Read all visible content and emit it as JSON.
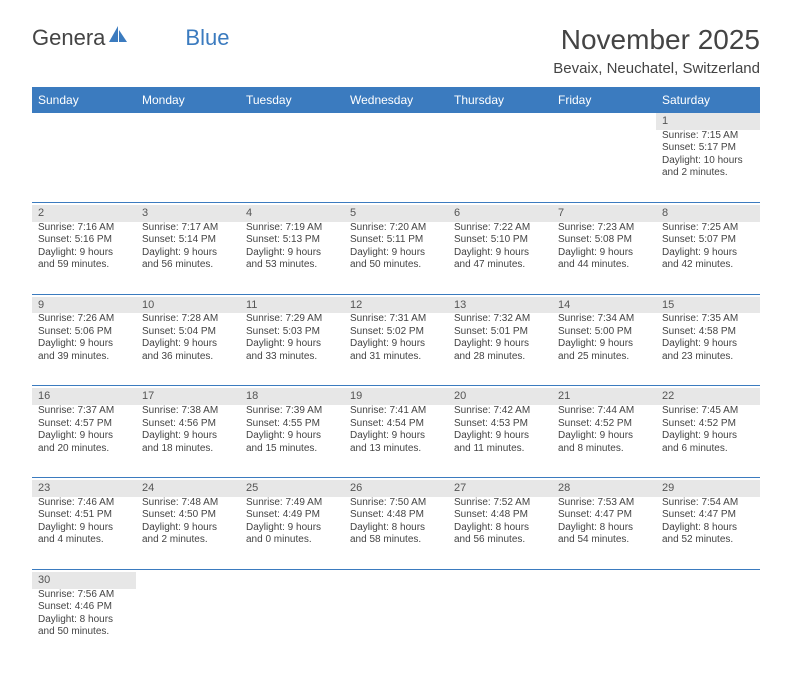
{
  "logo": {
    "text_general": "Genera",
    "text_blue": "Blue",
    "triangle_color": "#3b7bbf"
  },
  "title": "November 2025",
  "location": "Bevaix, Neuchatel, Switzerland",
  "colors": {
    "header_bg": "#3b7bbf",
    "header_text": "#ffffff",
    "daynum_bg": "#e7e7e7",
    "sep_color": "#3b7bbf",
    "text": "#444444"
  },
  "day_headers": [
    "Sunday",
    "Monday",
    "Tuesday",
    "Wednesday",
    "Thursday",
    "Friday",
    "Saturday"
  ],
  "weeks": [
    [
      null,
      null,
      null,
      null,
      null,
      null,
      {
        "n": "1",
        "sunrise": "Sunrise: 7:15 AM",
        "sunset": "Sunset: 5:17 PM",
        "daylight1": "Daylight: 10 hours",
        "daylight2": "and 2 minutes."
      }
    ],
    [
      {
        "n": "2",
        "sunrise": "Sunrise: 7:16 AM",
        "sunset": "Sunset: 5:16 PM",
        "daylight1": "Daylight: 9 hours",
        "daylight2": "and 59 minutes."
      },
      {
        "n": "3",
        "sunrise": "Sunrise: 7:17 AM",
        "sunset": "Sunset: 5:14 PM",
        "daylight1": "Daylight: 9 hours",
        "daylight2": "and 56 minutes."
      },
      {
        "n": "4",
        "sunrise": "Sunrise: 7:19 AM",
        "sunset": "Sunset: 5:13 PM",
        "daylight1": "Daylight: 9 hours",
        "daylight2": "and 53 minutes."
      },
      {
        "n": "5",
        "sunrise": "Sunrise: 7:20 AM",
        "sunset": "Sunset: 5:11 PM",
        "daylight1": "Daylight: 9 hours",
        "daylight2": "and 50 minutes."
      },
      {
        "n": "6",
        "sunrise": "Sunrise: 7:22 AM",
        "sunset": "Sunset: 5:10 PM",
        "daylight1": "Daylight: 9 hours",
        "daylight2": "and 47 minutes."
      },
      {
        "n": "7",
        "sunrise": "Sunrise: 7:23 AM",
        "sunset": "Sunset: 5:08 PM",
        "daylight1": "Daylight: 9 hours",
        "daylight2": "and 44 minutes."
      },
      {
        "n": "8",
        "sunrise": "Sunrise: 7:25 AM",
        "sunset": "Sunset: 5:07 PM",
        "daylight1": "Daylight: 9 hours",
        "daylight2": "and 42 minutes."
      }
    ],
    [
      {
        "n": "9",
        "sunrise": "Sunrise: 7:26 AM",
        "sunset": "Sunset: 5:06 PM",
        "daylight1": "Daylight: 9 hours",
        "daylight2": "and 39 minutes."
      },
      {
        "n": "10",
        "sunrise": "Sunrise: 7:28 AM",
        "sunset": "Sunset: 5:04 PM",
        "daylight1": "Daylight: 9 hours",
        "daylight2": "and 36 minutes."
      },
      {
        "n": "11",
        "sunrise": "Sunrise: 7:29 AM",
        "sunset": "Sunset: 5:03 PM",
        "daylight1": "Daylight: 9 hours",
        "daylight2": "and 33 minutes."
      },
      {
        "n": "12",
        "sunrise": "Sunrise: 7:31 AM",
        "sunset": "Sunset: 5:02 PM",
        "daylight1": "Daylight: 9 hours",
        "daylight2": "and 31 minutes."
      },
      {
        "n": "13",
        "sunrise": "Sunrise: 7:32 AM",
        "sunset": "Sunset: 5:01 PM",
        "daylight1": "Daylight: 9 hours",
        "daylight2": "and 28 minutes."
      },
      {
        "n": "14",
        "sunrise": "Sunrise: 7:34 AM",
        "sunset": "Sunset: 5:00 PM",
        "daylight1": "Daylight: 9 hours",
        "daylight2": "and 25 minutes."
      },
      {
        "n": "15",
        "sunrise": "Sunrise: 7:35 AM",
        "sunset": "Sunset: 4:58 PM",
        "daylight1": "Daylight: 9 hours",
        "daylight2": "and 23 minutes."
      }
    ],
    [
      {
        "n": "16",
        "sunrise": "Sunrise: 7:37 AM",
        "sunset": "Sunset: 4:57 PM",
        "daylight1": "Daylight: 9 hours",
        "daylight2": "and 20 minutes."
      },
      {
        "n": "17",
        "sunrise": "Sunrise: 7:38 AM",
        "sunset": "Sunset: 4:56 PM",
        "daylight1": "Daylight: 9 hours",
        "daylight2": "and 18 minutes."
      },
      {
        "n": "18",
        "sunrise": "Sunrise: 7:39 AM",
        "sunset": "Sunset: 4:55 PM",
        "daylight1": "Daylight: 9 hours",
        "daylight2": "and 15 minutes."
      },
      {
        "n": "19",
        "sunrise": "Sunrise: 7:41 AM",
        "sunset": "Sunset: 4:54 PM",
        "daylight1": "Daylight: 9 hours",
        "daylight2": "and 13 minutes."
      },
      {
        "n": "20",
        "sunrise": "Sunrise: 7:42 AM",
        "sunset": "Sunset: 4:53 PM",
        "daylight1": "Daylight: 9 hours",
        "daylight2": "and 11 minutes."
      },
      {
        "n": "21",
        "sunrise": "Sunrise: 7:44 AM",
        "sunset": "Sunset: 4:52 PM",
        "daylight1": "Daylight: 9 hours",
        "daylight2": "and 8 minutes."
      },
      {
        "n": "22",
        "sunrise": "Sunrise: 7:45 AM",
        "sunset": "Sunset: 4:52 PM",
        "daylight1": "Daylight: 9 hours",
        "daylight2": "and 6 minutes."
      }
    ],
    [
      {
        "n": "23",
        "sunrise": "Sunrise: 7:46 AM",
        "sunset": "Sunset: 4:51 PM",
        "daylight1": "Daylight: 9 hours",
        "daylight2": "and 4 minutes."
      },
      {
        "n": "24",
        "sunrise": "Sunrise: 7:48 AM",
        "sunset": "Sunset: 4:50 PM",
        "daylight1": "Daylight: 9 hours",
        "daylight2": "and 2 minutes."
      },
      {
        "n": "25",
        "sunrise": "Sunrise: 7:49 AM",
        "sunset": "Sunset: 4:49 PM",
        "daylight1": "Daylight: 9 hours",
        "daylight2": "and 0 minutes."
      },
      {
        "n": "26",
        "sunrise": "Sunrise: 7:50 AM",
        "sunset": "Sunset: 4:48 PM",
        "daylight1": "Daylight: 8 hours",
        "daylight2": "and 58 minutes."
      },
      {
        "n": "27",
        "sunrise": "Sunrise: 7:52 AM",
        "sunset": "Sunset: 4:48 PM",
        "daylight1": "Daylight: 8 hours",
        "daylight2": "and 56 minutes."
      },
      {
        "n": "28",
        "sunrise": "Sunrise: 7:53 AM",
        "sunset": "Sunset: 4:47 PM",
        "daylight1": "Daylight: 8 hours",
        "daylight2": "and 54 minutes."
      },
      {
        "n": "29",
        "sunrise": "Sunrise: 7:54 AM",
        "sunset": "Sunset: 4:47 PM",
        "daylight1": "Daylight: 8 hours",
        "daylight2": "and 52 minutes."
      }
    ],
    [
      {
        "n": "30",
        "sunrise": "Sunrise: 7:56 AM",
        "sunset": "Sunset: 4:46 PM",
        "daylight1": "Daylight: 8 hours",
        "daylight2": "and 50 minutes."
      },
      null,
      null,
      null,
      null,
      null,
      null
    ]
  ]
}
